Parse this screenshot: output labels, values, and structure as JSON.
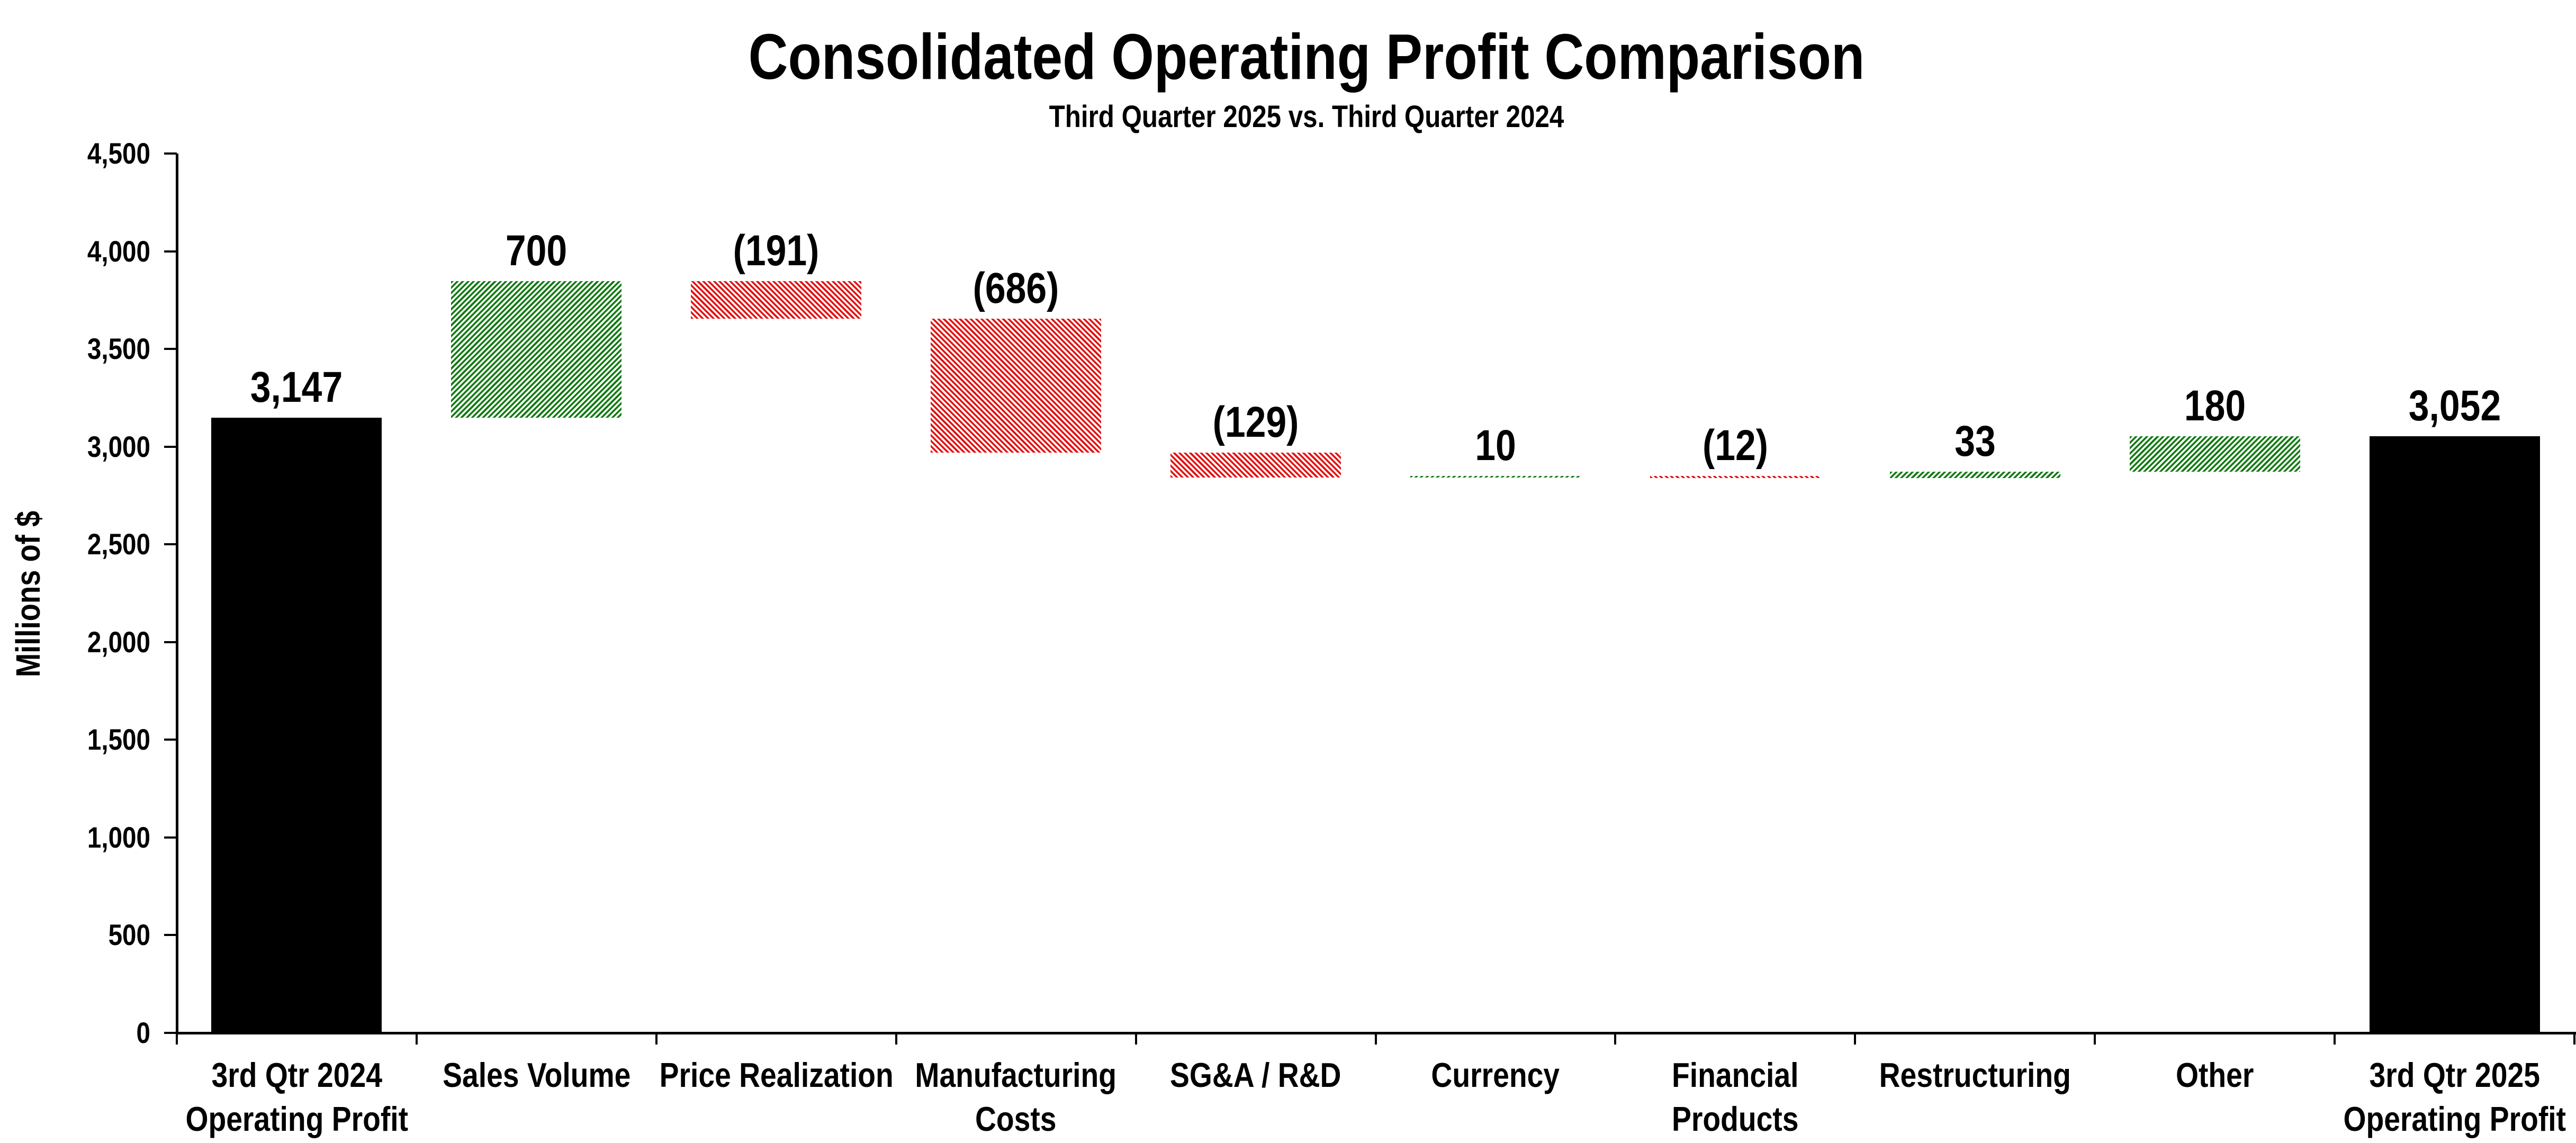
{
  "page": {
    "background": "#ffffff"
  },
  "chart_data": {
    "type": "bar",
    "subtype": "waterfall",
    "title": "Consolidated Operating Profit Comparison",
    "subtitle": "Third Quarter 2025 vs. Third Quarter 2024",
    "xlabel": "",
    "ylabel": "Millions of $",
    "grid": "off",
    "legend": "none",
    "y_axis": {
      "min": 0,
      "max": 4500,
      "tick_interval": 500,
      "tick_labels": [
        "0",
        "500",
        "1,000",
        "1,500",
        "2,000",
        "2,500",
        "3,000",
        "3,500",
        "4,000",
        "4,500"
      ]
    },
    "colors": {
      "total": "#000000",
      "increase": "#127a12",
      "decrease": "#e21212",
      "axis": "#000000",
      "text": "#000000",
      "hatch_background": "#ffffff"
    },
    "bars": [
      {
        "category": "3rd Qtr 2024 Operating Profit",
        "label_lines": [
          "3rd Qtr 2024",
          "Operating Profit"
        ],
        "value": 3147,
        "value_label": "3,147",
        "base": 0,
        "end": 3147,
        "kind": "total"
      },
      {
        "category": "Sales Volume",
        "label_lines": [
          "Sales Volume"
        ],
        "value": 700,
        "value_label": "700",
        "base": 3147,
        "end": 3847,
        "kind": "increase"
      },
      {
        "category": "Price Realization",
        "label_lines": [
          "Price Realization"
        ],
        "value": -191,
        "value_label": "(191)",
        "base": 3847,
        "end": 3656,
        "kind": "decrease"
      },
      {
        "category": "Manufacturing Costs",
        "label_lines": [
          "Manufacturing",
          "Costs"
        ],
        "value": -686,
        "value_label": "(686)",
        "base": 3656,
        "end": 2970,
        "kind": "decrease"
      },
      {
        "category": "SG&A / R&D",
        "label_lines": [
          "SG&A / R&D"
        ],
        "value": -129,
        "value_label": "(129)",
        "base": 2970,
        "end": 2841,
        "kind": "decrease"
      },
      {
        "category": "Currency",
        "label_lines": [
          "Currency"
        ],
        "value": 10,
        "value_label": "10",
        "base": 2841,
        "end": 2851,
        "kind": "increase"
      },
      {
        "category": "Financial Products",
        "label_lines": [
          "Financial",
          "Products"
        ],
        "value": -12,
        "value_label": "(12)",
        "base": 2851,
        "end": 2839,
        "kind": "decrease"
      },
      {
        "category": "Restructuring",
        "label_lines": [
          "Restructuring"
        ],
        "value": 33,
        "value_label": "33",
        "base": 2839,
        "end": 2872,
        "kind": "increase"
      },
      {
        "category": "Other",
        "label_lines": [
          "Other"
        ],
        "value": 180,
        "value_label": "180",
        "base": 2872,
        "end": 3052,
        "kind": "increase"
      },
      {
        "category": "3rd Qtr 2025 Operating Profit",
        "label_lines": [
          "3rd Qtr 2025",
          "Operating Profit"
        ],
        "value": 3052,
        "value_label": "3,052",
        "base": 0,
        "end": 3052,
        "kind": "total"
      }
    ]
  }
}
